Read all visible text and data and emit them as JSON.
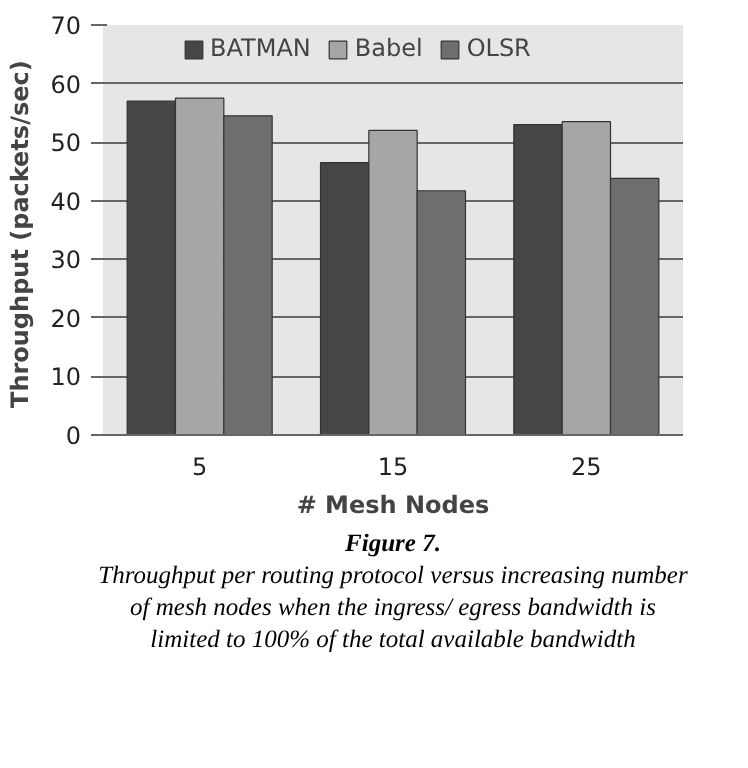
{
  "chart_data": {
    "type": "bar",
    "xlabel": "# Mesh Nodes",
    "ylabel": "Throughput  (packets/sec)",
    "categories": [
      "5",
      "15",
      "25"
    ],
    "series": [
      {
        "name": "BATMAN",
        "color": "#464646",
        "values": [
          57,
          46.5,
          53
        ]
      },
      {
        "name": "Babel",
        "color": "#a6a6a6",
        "values": [
          57.5,
          52,
          53.5
        ]
      },
      {
        "name": "OLSR",
        "color": "#6e6e6e",
        "values": [
          54.5,
          41.7,
          43.8
        ]
      }
    ],
    "ylim": [
      0,
      70
    ],
    "yticks": [
      0,
      10,
      20,
      30,
      40,
      50,
      60,
      70
    ],
    "grid": "y",
    "legend": "top",
    "annotations": [
      "Figure 7.",
      "Throughput per routing protocol versus increasing number of mesh nodes when the ingress/ egress bandwidth is limited to 100% of the total available bandwidth"
    ]
  }
}
